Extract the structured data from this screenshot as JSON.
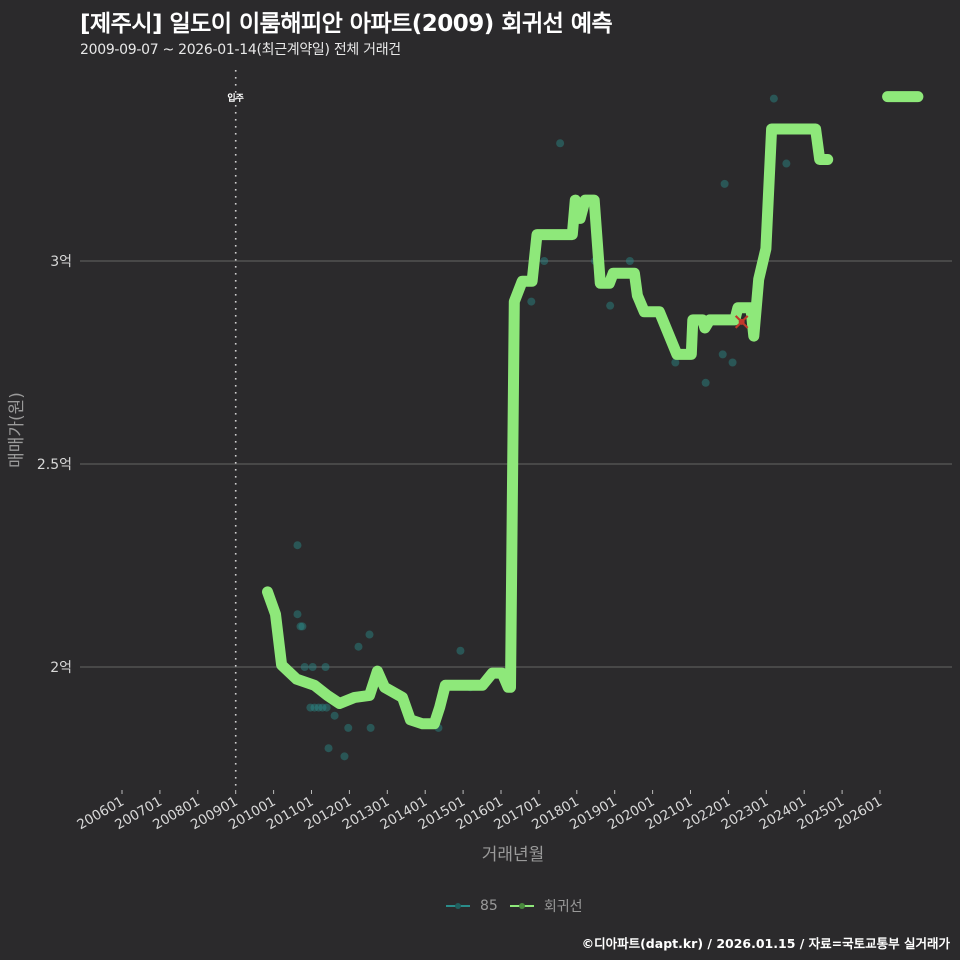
{
  "header": {
    "title": "[제주시] 일도이 이룸해피안 아파트(2009) 회귀선 예측",
    "subtitle": "2009-09-07 ~ 2026-01-14(최근계약일) 전체 거래건"
  },
  "caption": "©디아파트(dapt.kr) / 2026.01.15 / 자료=국토교통부 실거래가",
  "legend": {
    "items": [
      {
        "label": "85",
        "color": "#2a8c8a"
      },
      {
        "label": "회귀선",
        "color": "#8ee87a"
      }
    ]
  },
  "colors": {
    "background": "#2b2a2c",
    "grid": "#5a5a5a",
    "regression": "#8ee87a",
    "points": "#2a8c8a",
    "marker_x": "#c0392b"
  },
  "chart_data": {
    "type": "line",
    "title": "[제주시] 일도이 이룸해피안 아파트(2009) 회귀선 예측",
    "subtitle": "2009-09-07 ~ 2026-01-14(최근계약일) 전체 거래건",
    "xlabel": "거래년월",
    "ylabel": "매매가(원)",
    "x_tick_labels": [
      "200601",
      "200701",
      "200801",
      "200901",
      "201001",
      "201101",
      "201201",
      "201301",
      "201401",
      "201501",
      "201601",
      "201701",
      "201801",
      "201901",
      "202001",
      "202101",
      "202201",
      "202301",
      "202401",
      "202501",
      "202601"
    ],
    "y_tick_labels": [
      "2억",
      "2.5억",
      "3억"
    ],
    "y_tick_values": [
      2.0,
      2.5,
      3.0
    ],
    "y_unit": "억",
    "xlim": [
      2006.0,
      2026.0
    ],
    "ylim": [
      1.7,
      3.45
    ],
    "grid": "horizontal major",
    "legend_position": "bottom",
    "annotations": [
      {
        "type": "vline",
        "x": 2009.0,
        "label": "입주",
        "style": "dotted"
      }
    ],
    "series": [
      {
        "name": "회귀선",
        "type": "line",
        "points": [
          [
            2009.84,
            2.185
          ],
          [
            2010.05,
            2.13
          ],
          [
            2010.21,
            2.005
          ],
          [
            2010.61,
            1.97
          ],
          [
            2011.08,
            1.955
          ],
          [
            2011.42,
            1.93
          ],
          [
            2011.74,
            1.91
          ],
          [
            2012.14,
            1.925
          ],
          [
            2012.53,
            1.93
          ],
          [
            2012.74,
            1.99
          ],
          [
            2012.93,
            1.95
          ],
          [
            2013.4,
            1.925
          ],
          [
            2013.61,
            1.87
          ],
          [
            2013.93,
            1.86
          ],
          [
            2014.24,
            1.86
          ],
          [
            2014.38,
            1.9
          ],
          [
            2014.53,
            1.955
          ],
          [
            2015.51,
            1.955
          ],
          [
            2015.77,
            1.985
          ],
          [
            2016.03,
            1.985
          ],
          [
            2016.19,
            1.95
          ],
          [
            2016.25,
            1.95
          ],
          [
            2016.35,
            2.9
          ],
          [
            2016.56,
            2.95
          ],
          [
            2016.82,
            2.95
          ],
          [
            2016.95,
            3.065
          ],
          [
            2017.88,
            3.065
          ],
          [
            2017.96,
            3.15
          ],
          [
            2018.09,
            3.105
          ],
          [
            2018.22,
            3.15
          ],
          [
            2018.46,
            3.15
          ],
          [
            2018.62,
            2.945
          ],
          [
            2018.86,
            2.945
          ],
          [
            2018.96,
            2.97
          ],
          [
            2019.52,
            2.97
          ],
          [
            2019.6,
            2.915
          ],
          [
            2019.78,
            2.875
          ],
          [
            2020.18,
            2.875
          ],
          [
            2020.64,
            2.77
          ],
          [
            2021.02,
            2.77
          ],
          [
            2021.06,
            2.855
          ],
          [
            2021.32,
            2.855
          ],
          [
            2021.38,
            2.835
          ],
          [
            2021.51,
            2.855
          ],
          [
            2021.61,
            2.855
          ],
          [
            2022.17,
            2.855
          ],
          [
            2022.25,
            2.885
          ],
          [
            2022.59,
            2.885
          ],
          [
            2022.67,
            2.815
          ],
          [
            2022.8,
            2.955
          ],
          [
            2022.99,
            3.03
          ],
          [
            2023.14,
            3.325
          ],
          [
            2024.3,
            3.325
          ],
          [
            2024.41,
            3.25
          ],
          [
            2024.62,
            3.25
          ]
        ]
      },
      {
        "name": "회귀선 (예측)",
        "type": "line",
        "points": [
          [
            2026.2,
            3.405
          ],
          [
            2027.0,
            3.405
          ]
        ]
      },
      {
        "name": "85",
        "type": "scatter",
        "points": [
          [
            2010.63,
            2.3
          ],
          [
            2010.63,
            2.13
          ],
          [
            2010.71,
            2.1
          ],
          [
            2010.76,
            2.1
          ],
          [
            2010.82,
            2.0
          ],
          [
            2011.03,
            2.0
          ],
          [
            2010.97,
            1.9
          ],
          [
            2011.08,
            1.9
          ],
          [
            2011.19,
            1.9
          ],
          [
            2011.29,
            1.9
          ],
          [
            2011.4,
            1.9
          ],
          [
            2011.37,
            2.0
          ],
          [
            2011.61,
            1.88
          ],
          [
            2011.45,
            1.8
          ],
          [
            2011.87,
            1.78
          ],
          [
            2011.97,
            1.85
          ],
          [
            2012.24,
            2.05
          ],
          [
            2012.53,
            2.08
          ],
          [
            2012.56,
            1.85
          ],
          [
            2014.35,
            1.85
          ],
          [
            2014.93,
            2.04
          ],
          [
            2015.19,
            1.95
          ],
          [
            2016.8,
            2.9
          ],
          [
            2017.14,
            3.0
          ],
          [
            2017.56,
            3.29
          ],
          [
            2018.48,
            3.0
          ],
          [
            2018.88,
            2.89
          ],
          [
            2019.4,
            3.0
          ],
          [
            2020.6,
            2.75
          ],
          [
            2021.4,
            2.7
          ],
          [
            2021.85,
            2.77
          ],
          [
            2021.9,
            3.19
          ],
          [
            2022.11,
            2.75
          ],
          [
            2023.2,
            3.4
          ],
          [
            2023.53,
            3.24
          ]
        ]
      },
      {
        "name": "latest-marker",
        "type": "x-marker",
        "points": [
          [
            2022.35,
            2.85
          ]
        ]
      }
    ]
  }
}
